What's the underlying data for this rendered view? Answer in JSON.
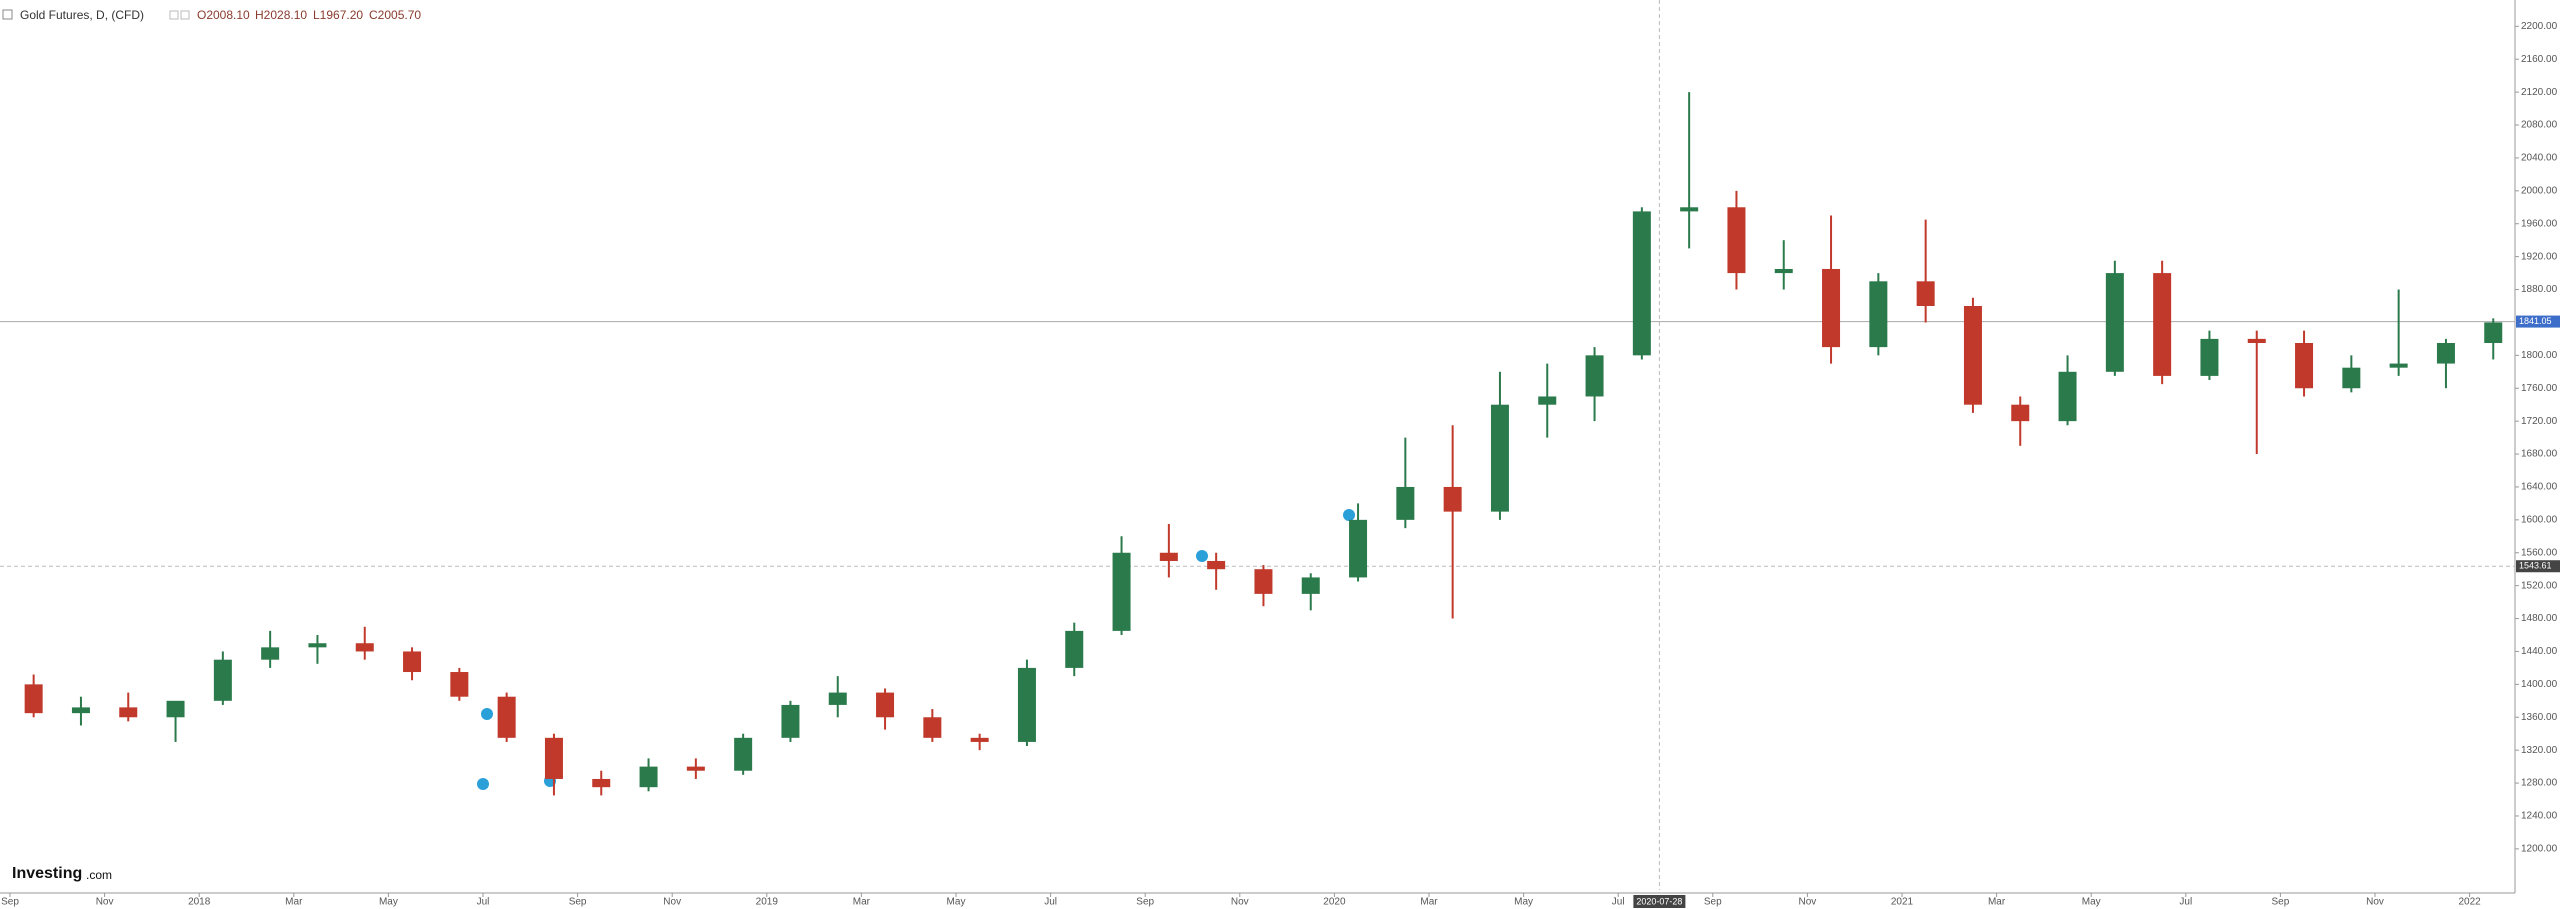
{
  "header": {
    "title": "Gold Futures, D, (CFD)",
    "ohlc": [
      "O2008.10",
      "H2028.10",
      "L1967.20",
      "C2005.70"
    ]
  },
  "watermark": {
    "brand": "Investing",
    "suffix": ".com"
  },
  "chart_data": {
    "type": "candlestick",
    "categories": [
      "2017-09",
      "2017-10",
      "2017-11",
      "2017-12",
      "2018-01",
      "2018-02",
      "2018-03",
      "2018-04",
      "2018-05",
      "2018-06",
      "2018-07",
      "2018-08",
      "2018-09",
      "2018-10",
      "2018-11",
      "2018-12",
      "2019-01",
      "2019-02",
      "2019-03",
      "2019-04",
      "2019-05",
      "2019-06",
      "2019-07",
      "2019-08",
      "2019-09",
      "2019-10",
      "2019-11",
      "2019-12",
      "2020-01",
      "2020-02",
      "2020-03",
      "2020-04",
      "2020-05",
      "2020-06",
      "2020-07",
      "2020-08",
      "2020-09",
      "2020-10",
      "2020-11",
      "2020-12",
      "2021-01",
      "2021-02",
      "2021-03",
      "2021-04",
      "2021-05",
      "2021-06",
      "2021-07",
      "2021-08",
      "2021-09",
      "2021-10",
      "2021-11",
      "2021-12",
      "2022-01"
    ],
    "open": [
      1400,
      1365,
      1372,
      1360,
      1380,
      1430,
      1445,
      1450,
      1440,
      1415,
      1385,
      1335,
      1285,
      1275,
      1300,
      1295,
      1335,
      1375,
      1390,
      1360,
      1335,
      1330,
      1420,
      1465,
      1560,
      1550,
      1540,
      1510,
      1530,
      1600,
      1640,
      1610,
      1740,
      1750,
      1800,
      1975,
      1980,
      1900,
      1905,
      1810,
      1890,
      1860,
      1740,
      1720,
      1780,
      1900,
      1775,
      1820,
      1815,
      1760,
      1785,
      1790,
      1815
    ],
    "high": [
      1412,
      1385,
      1390,
      1375,
      1440,
      1465,
      1460,
      1470,
      1445,
      1420,
      1390,
      1340,
      1295,
      1310,
      1310,
      1340,
      1380,
      1410,
      1395,
      1370,
      1340,
      1430,
      1475,
      1580,
      1595,
      1560,
      1545,
      1535,
      1620,
      1700,
      1715,
      1780,
      1790,
      1810,
      1980,
      2120,
      2000,
      1940,
      1970,
      1900,
      1965,
      1870,
      1750,
      1800,
      1915,
      1915,
      1830,
      1830,
      1830,
      1800,
      1880,
      1820,
      1845
    ],
    "low": [
      1360,
      1350,
      1355,
      1330,
      1375,
      1420,
      1425,
      1430,
      1405,
      1380,
      1330,
      1265,
      1265,
      1270,
      1285,
      1290,
      1330,
      1360,
      1345,
      1330,
      1320,
      1325,
      1410,
      1460,
      1530,
      1515,
      1495,
      1490,
      1525,
      1590,
      1480,
      1600,
      1700,
      1720,
      1795,
      1930,
      1880,
      1880,
      1790,
      1800,
      1840,
      1730,
      1690,
      1715,
      1775,
      1765,
      1770,
      1680,
      1750,
      1755,
      1775,
      1760,
      1795
    ],
    "close": [
      1365,
      1372,
      1360,
      1380,
      1430,
      1445,
      1450,
      1440,
      1415,
      1385,
      1335,
      1285,
      1275,
      1300,
      1295,
      1335,
      1375,
      1390,
      1360,
      1335,
      1330,
      1420,
      1465,
      1560,
      1550,
      1540,
      1510,
      1530,
      1600,
      1640,
      1610,
      1740,
      1750,
      1800,
      1975,
      1980,
      1900,
      1905,
      1810,
      1890,
      1860,
      1740,
      1720,
      1780,
      1900,
      1775,
      1820,
      1815,
      1760,
      1785,
      1790,
      1815,
      1840
    ],
    "up_color": "#2b7a4b",
    "down_color": "#c0392b",
    "ylim": [
      1150,
      2232
    ],
    "yticks": [
      {
        "value": 1200,
        "label": "1200.00"
      },
      {
        "value": 1240,
        "label": "1240.00"
      },
      {
        "value": 1280,
        "label": "1280.00"
      },
      {
        "value": 1320,
        "label": "1320.00"
      },
      {
        "value": 1360,
        "label": "1360.00"
      },
      {
        "value": 1400,
        "label": "1400.00"
      },
      {
        "value": 1440,
        "label": "1440.00"
      },
      {
        "value": 1480,
        "label": "1480.00"
      },
      {
        "value": 1520,
        "label": "1520.00"
      },
      {
        "value": 1560,
        "label": "1560.00"
      },
      {
        "value": 1600,
        "label": "1600.00"
      },
      {
        "value": 1640,
        "label": "1640.00"
      },
      {
        "value": 1680,
        "label": "1680.00"
      },
      {
        "value": 1720,
        "label": "1720.00"
      },
      {
        "value": 1760,
        "label": "1760.00"
      },
      {
        "value": 1800,
        "label": "1800.00"
      },
      {
        "value": 1880,
        "label": "1880.00"
      },
      {
        "value": 1920,
        "label": "1920.00"
      },
      {
        "value": 1960,
        "label": "1960.00"
      },
      {
        "value": 2000,
        "label": "2000.00"
      },
      {
        "value": 2040,
        "label": "2040.00"
      },
      {
        "value": 2080,
        "label": "2080.00"
      },
      {
        "value": 2120,
        "label": "2120.00"
      },
      {
        "value": 2160,
        "label": "2160.00"
      },
      {
        "value": 2200,
        "label": "2200.00"
      }
    ],
    "xticks": [
      {
        "value": "2017-09",
        "label": "Sep"
      },
      {
        "value": "2017-11",
        "label": "Nov"
      },
      {
        "value": "2018-01",
        "label": "2018"
      },
      {
        "value": "2018-03",
        "label": "Mar"
      },
      {
        "value": "2018-05",
        "label": "May"
      },
      {
        "value": "2018-07",
        "label": "Jul"
      },
      {
        "value": "2018-09",
        "label": "Sep"
      },
      {
        "value": "2018-11",
        "label": "Nov"
      },
      {
        "value": "2019-01",
        "label": "2019"
      },
      {
        "value": "2019-03",
        "label": "Mar"
      },
      {
        "value": "2019-05",
        "label": "May"
      },
      {
        "value": "2019-07",
        "label": "Jul"
      },
      {
        "value": "2019-09",
        "label": "Sep"
      },
      {
        "value": "2019-11",
        "label": "Nov"
      },
      {
        "value": "2020-01",
        "label": "2020"
      },
      {
        "value": "2020-03",
        "label": "Mar"
      },
      {
        "value": "2020-05",
        "label": "May"
      },
      {
        "value": "2020-07",
        "label": "Jul"
      },
      {
        "value": "2020-09",
        "label": "Sep"
      },
      {
        "value": "2020-11",
        "label": "Nov"
      },
      {
        "value": "2021-01",
        "label": "2021"
      },
      {
        "value": "2021-03",
        "label": "Mar"
      },
      {
        "value": "2021-05",
        "label": "May"
      },
      {
        "value": "2021-07",
        "label": "Jul"
      },
      {
        "value": "2021-09",
        "label": "Sep"
      },
      {
        "value": "2021-11",
        "label": "Nov"
      },
      {
        "value": "2022-01",
        "label": "2022"
      }
    ],
    "last_price": 1841.05,
    "crosshair": {
      "date": "2020-07-28",
      "price": 1543.61
    }
  }
}
